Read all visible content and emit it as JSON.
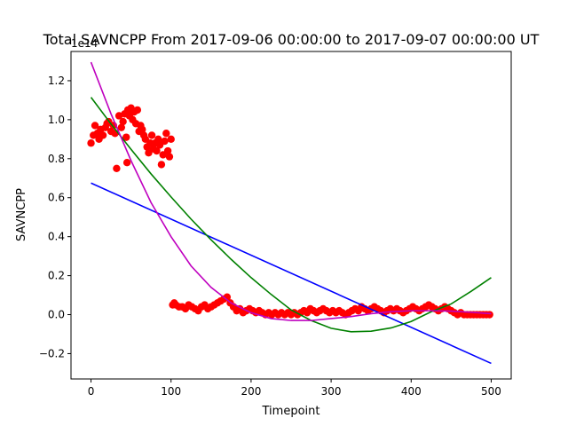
{
  "chart_data": {
    "type": "scatter",
    "title": "Total SAVNCPP From 2017-09-06 00:00:00 to 2017-09-07 00:00:00 UT",
    "xlabel": "Timepoint",
    "ylabel": "SAVNCPP",
    "offset_label": "1e14",
    "xlim": [
      -25,
      525
    ],
    "ylim": [
      -0.33,
      1.35
    ],
    "x_ticks": [
      0,
      100,
      200,
      300,
      400,
      500
    ],
    "x_tick_labels": [
      "0",
      "100",
      "200",
      "300",
      "400",
      "500"
    ],
    "y_ticks": [
      -0.2,
      0.0,
      0.2,
      0.4,
      0.6,
      0.8,
      1.0,
      1.2
    ],
    "y_tick_labels": [
      "−0.2",
      "0.0",
      "0.2",
      "0.4",
      "0.6",
      "0.8",
      "1.0",
      "1.2"
    ],
    "grid": false,
    "legend": "none",
    "colors": {
      "points": "#ff0000",
      "linear_fit": "#0000ff",
      "quadratic_fit": "#008000",
      "cubic_fit": "#bf00bf"
    },
    "scatter_points": {
      "x": [
        0,
        3,
        5,
        8,
        10,
        12,
        15,
        18,
        20,
        22,
        25,
        28,
        30,
        32,
        35,
        38,
        40,
        42,
        44,
        45,
        46,
        48,
        50,
        52,
        54,
        56,
        58,
        60,
        62,
        64,
        66,
        68,
        70,
        72,
        74,
        76,
        78,
        80,
        82,
        84,
        86,
        88,
        90,
        92,
        94,
        96,
        98,
        100,
        102,
        104,
        106,
        110,
        114,
        118,
        122,
        126,
        130,
        134,
        138,
        142,
        146,
        150,
        154,
        158,
        162,
        166,
        170,
        174,
        178,
        182,
        186,
        190,
        194,
        198,
        202,
        206,
        210,
        214,
        218,
        222,
        226,
        230,
        234,
        238,
        242,
        246,
        250,
        254,
        258,
        262,
        266,
        270,
        274,
        278,
        282,
        286,
        290,
        294,
        298,
        302,
        306,
        310,
        314,
        318,
        322,
        326,
        330,
        334,
        338,
        342,
        346,
        350,
        354,
        358,
        362,
        366,
        370,
        374,
        378,
        382,
        386,
        390,
        394,
        398,
        402,
        406,
        410,
        414,
        418,
        422,
        426,
        430,
        434,
        438,
        442,
        446,
        450,
        454,
        458,
        462,
        466,
        470,
        474,
        478,
        482,
        486,
        490,
        494,
        498
      ],
      "y": [
        0.88,
        0.92,
        0.97,
        0.93,
        0.9,
        0.95,
        0.92,
        0.96,
        0.98,
        0.99,
        0.94,
        0.97,
        0.93,
        0.75,
        1.02,
        0.96,
        0.99,
        1.03,
        0.91,
        0.78,
        1.05,
        1.02,
        1.06,
        1.0,
        1.04,
        0.98,
        1.05,
        0.94,
        0.97,
        0.95,
        0.92,
        0.9,
        0.86,
        0.83,
        0.88,
        0.92,
        0.85,
        0.88,
        0.84,
        0.9,
        0.87,
        0.77,
        0.82,
        0.89,
        0.93,
        0.84,
        0.81,
        0.9,
        0.05,
        0.06,
        0.05,
        0.04,
        0.04,
        0.03,
        0.05,
        0.04,
        0.03,
        0.02,
        0.04,
        0.05,
        0.03,
        0.04,
        0.05,
        0.06,
        0.07,
        0.08,
        0.09,
        0.06,
        0.04,
        0.02,
        0.03,
        0.01,
        0.02,
        0.03,
        0.02,
        0.01,
        0.02,
        0.01,
        0.0,
        0.01,
        0.0,
        0.01,
        0.0,
        0.01,
        0.0,
        0.01,
        0.0,
        0.01,
        0.0,
        0.01,
        0.02,
        0.01,
        0.03,
        0.02,
        0.01,
        0.02,
        0.03,
        0.02,
        0.01,
        0.02,
        0.01,
        0.02,
        0.01,
        0.0,
        0.01,
        0.02,
        0.03,
        0.02,
        0.04,
        0.03,
        0.02,
        0.03,
        0.04,
        0.03,
        0.02,
        0.01,
        0.02,
        0.03,
        0.02,
        0.03,
        0.02,
        0.01,
        0.02,
        0.03,
        0.04,
        0.03,
        0.02,
        0.03,
        0.04,
        0.05,
        0.04,
        0.03,
        0.02,
        0.03,
        0.04,
        0.03,
        0.02,
        0.01,
        0.0,
        0.01,
        0.0,
        0.0,
        0.0,
        0.0,
        0.0,
        0.0,
        0.0,
        0.0,
        0.0
      ]
    },
    "fits": [
      {
        "kind": "linear",
        "x": [
          0,
          500
        ],
        "y": [
          0.675,
          -0.25
        ]
      },
      {
        "kind": "quadratic",
        "x": [
          0,
          25,
          50,
          75,
          100,
          125,
          150,
          175,
          200,
          225,
          250,
          275,
          300,
          325,
          350,
          375,
          400,
          425,
          450,
          475,
          500
        ],
        "y": [
          1.115,
          0.978,
          0.848,
          0.722,
          0.604,
          0.49,
          0.384,
          0.284,
          0.19,
          0.104,
          0.024,
          -0.03,
          -0.07,
          -0.088,
          -0.085,
          -0.068,
          -0.035,
          0.015,
          0.055,
          0.12,
          0.19
        ]
      },
      {
        "kind": "cubic",
        "x": [
          0,
          25,
          50,
          75,
          100,
          125,
          150,
          175,
          200,
          225,
          250,
          275,
          300,
          325,
          350,
          375,
          400,
          425,
          450,
          475,
          500
        ],
        "y": [
          1.295,
          1.03,
          0.79,
          0.575,
          0.4,
          0.25,
          0.14,
          0.06,
          0.01,
          -0.02,
          -0.03,
          -0.03,
          -0.02,
          -0.01,
          0.005,
          0.015,
          0.02,
          0.02,
          0.018,
          0.012,
          0.005
        ]
      }
    ]
  }
}
